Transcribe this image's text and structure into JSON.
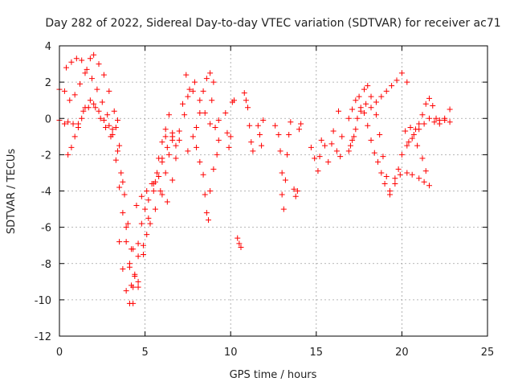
{
  "chart_data": {
    "type": "scatter",
    "title": "Day 282 of 2022, Sidereal Day-to-day VTEC variation (SDTVAR) for receiver ac71",
    "xlabel": "GPS time / hours",
    "ylabel": "SDTVAR / TECUs",
    "xlim": [
      0,
      25
    ],
    "ylim": [
      -12,
      4
    ],
    "xticks": [
      0,
      5,
      10,
      15,
      20,
      25
    ],
    "yticks": [
      -12,
      -10,
      -8,
      -6,
      -4,
      -2,
      0,
      2,
      4
    ],
    "xtick_labels": [
      "0",
      "5",
      "10",
      "15",
      "20",
      "25"
    ],
    "ytick_labels": [
      "-12",
      "-10",
      "-8",
      "-6",
      "-4",
      "-2",
      "0",
      "2",
      "4"
    ],
    "grid": true,
    "marker": "+",
    "series": [
      {
        "name": "SDTVAR",
        "color": "#ff0000",
        "points": [
          [
            0.0,
            1.6
          ],
          [
            0.3,
            1.5
          ],
          [
            0.6,
            1.0
          ],
          [
            0.9,
            1.3
          ],
          [
            1.2,
            1.9
          ],
          [
            1.5,
            2.5
          ],
          [
            1.8,
            3.3
          ],
          [
            2.0,
            3.5
          ],
          [
            2.3,
            3.0
          ],
          [
            2.6,
            2.4
          ],
          [
            2.9,
            1.5
          ],
          [
            3.2,
            0.4
          ],
          [
            3.5,
            -1.5
          ],
          [
            3.7,
            -3.5
          ],
          [
            3.9,
            -6.0
          ],
          [
            4.1,
            -8.2
          ],
          [
            4.3,
            -9.3
          ],
          [
            4.6,
            -9.0
          ],
          [
            4.9,
            -7.5
          ],
          [
            5.2,
            -5.5
          ],
          [
            5.5,
            -3.6
          ],
          [
            0.0,
            -0.1
          ],
          [
            0.3,
            -0.3
          ],
          [
            0.5,
            -0.2
          ],
          [
            0.8,
            -0.3
          ],
          [
            1.1,
            -0.5
          ],
          [
            1.3,
            0.0
          ],
          [
            1.5,
            0.6
          ],
          [
            1.8,
            1.0
          ],
          [
            2.1,
            0.6
          ],
          [
            2.4,
            0.0
          ],
          [
            2.7,
            -0.5
          ],
          [
            3.0,
            -1.0
          ],
          [
            3.3,
            -2.3
          ],
          [
            3.5,
            -3.8
          ],
          [
            3.7,
            -5.2
          ],
          [
            3.9,
            -6.8
          ],
          [
            4.1,
            -8.0
          ],
          [
            4.2,
            -9.2
          ],
          [
            4.3,
            -10.2
          ],
          [
            0.4,
            2.8
          ],
          [
            0.7,
            3.1
          ],
          [
            1.0,
            3.3
          ],
          [
            1.3,
            3.2
          ],
          [
            1.6,
            2.7
          ],
          [
            1.9,
            2.2
          ],
          [
            2.2,
            1.6
          ],
          [
            2.5,
            0.9
          ],
          [
            2.8,
            0.2
          ],
          [
            3.1,
            -0.6
          ],
          [
            3.4,
            -1.8
          ],
          [
            3.6,
            -3.0
          ],
          [
            3.8,
            -4.2
          ],
          [
            4.0,
            -5.8
          ],
          [
            4.2,
            -7.2
          ],
          [
            4.4,
            -8.6
          ],
          [
            4.6,
            -9.3
          ],
          [
            0.5,
            -2.0
          ],
          [
            0.7,
            -1.6
          ],
          [
            0.9,
            -1.0
          ],
          [
            1.1,
            -0.3
          ],
          [
            1.4,
            0.4
          ],
          [
            1.7,
            0.6
          ],
          [
            2.0,
            0.8
          ],
          [
            2.3,
            0.4
          ],
          [
            2.6,
            -0.1
          ],
          [
            2.9,
            -0.4
          ],
          [
            3.1,
            -0.9
          ],
          [
            3.3,
            -0.5
          ],
          [
            3.4,
            -0.1
          ],
          [
            3.5,
            -6.8
          ],
          [
            3.7,
            -8.3
          ],
          [
            3.9,
            -9.5
          ],
          [
            4.1,
            -10.2
          ],
          [
            4.4,
            -8.7
          ],
          [
            4.6,
            -6.9
          ],
          [
            4.8,
            -5.8
          ],
          [
            5.0,
            -5.0
          ],
          [
            5.2,
            -4.5
          ],
          [
            5.5,
            -4.0
          ],
          [
            5.8,
            -3.2
          ],
          [
            6.0,
            -2.2
          ],
          [
            6.2,
            -1.0
          ],
          [
            4.3,
            -7.2
          ],
          [
            4.6,
            -7.6
          ],
          [
            4.9,
            -7.0
          ],
          [
            5.1,
            -6.4
          ],
          [
            5.3,
            -5.8
          ],
          [
            5.6,
            -5.0
          ],
          [
            5.9,
            -4.0
          ],
          [
            6.2,
            -3.0
          ],
          [
            6.4,
            -2.0
          ],
          [
            6.6,
            -1.2
          ],
          [
            4.5,
            -4.8
          ],
          [
            4.8,
            -4.3
          ],
          [
            5.1,
            -4.0
          ],
          [
            5.4,
            -3.6
          ],
          [
            5.7,
            -3.0
          ],
          [
            6.0,
            -2.4
          ],
          [
            6.3,
            -1.6
          ],
          [
            6.6,
            -1.0
          ],
          [
            5.6,
            -3.5
          ],
          [
            5.8,
            -2.2
          ],
          [
            6.0,
            -1.3
          ],
          [
            6.2,
            -0.6
          ],
          [
            6.4,
            0.2
          ],
          [
            6.6,
            -0.8
          ],
          [
            6.8,
            -1.5
          ],
          [
            7.0,
            -0.7
          ],
          [
            7.2,
            0.8
          ],
          [
            7.4,
            2.4
          ],
          [
            6.0,
            -4.2
          ],
          [
            6.3,
            -4.6
          ],
          [
            6.6,
            -3.4
          ],
          [
            6.8,
            -2.2
          ],
          [
            7.0,
            -1.2
          ],
          [
            7.3,
            0.2
          ],
          [
            7.5,
            1.2
          ],
          [
            7.8,
            1.5
          ],
          [
            7.5,
            -1.8
          ],
          [
            7.8,
            -1.0
          ],
          [
            8.0,
            -0.5
          ],
          [
            8.2,
            0.3
          ],
          [
            8.4,
            1.5
          ],
          [
            8.6,
            2.2
          ],
          [
            8.8,
            2.5
          ],
          [
            9.0,
            2.0
          ],
          [
            8.9,
            1.0
          ],
          [
            8.0,
            -1.6
          ],
          [
            8.2,
            -2.4
          ],
          [
            8.4,
            -3.1
          ],
          [
            8.5,
            -4.2
          ],
          [
            8.6,
            -5.2
          ],
          [
            8.7,
            -5.6
          ],
          [
            8.8,
            -4.0
          ],
          [
            9.0,
            -2.8
          ],
          [
            9.2,
            -2.0
          ],
          [
            9.3,
            -1.2
          ],
          [
            7.6,
            1.6
          ],
          [
            7.9,
            2.0
          ],
          [
            8.2,
            1.0
          ],
          [
            8.5,
            0.3
          ],
          [
            8.8,
            -0.3
          ],
          [
            9.1,
            -0.5
          ],
          [
            9.3,
            -0.1
          ],
          [
            9.7,
            0.3
          ],
          [
            9.8,
            -0.8
          ],
          [
            9.9,
            -1.6
          ],
          [
            10.0,
            -1.0
          ],
          [
            10.1,
            0.9
          ],
          [
            10.2,
            1.0
          ],
          [
            10.4,
            -6.6
          ],
          [
            10.5,
            -6.9
          ],
          [
            10.6,
            -7.1
          ],
          [
            10.8,
            1.4
          ],
          [
            10.9,
            1.0
          ],
          [
            11.0,
            0.6
          ],
          [
            11.1,
            -0.4
          ],
          [
            11.2,
            -1.3
          ],
          [
            11.3,
            -1.8
          ],
          [
            11.6,
            -0.4
          ],
          [
            11.7,
            -0.9
          ],
          [
            11.8,
            -1.5
          ],
          [
            11.9,
            -0.1
          ],
          [
            12.6,
            -0.4
          ],
          [
            12.8,
            -0.9
          ],
          [
            12.9,
            -1.8
          ],
          [
            13.0,
            -3.0
          ],
          [
            13.0,
            -4.2
          ],
          [
            13.1,
            -5.0
          ],
          [
            13.2,
            -3.4
          ],
          [
            13.3,
            -2.0
          ],
          [
            13.4,
            -0.9
          ],
          [
            13.5,
            -0.2
          ],
          [
            13.7,
            -3.9
          ],
          [
            13.8,
            -4.3
          ],
          [
            13.9,
            -4.0
          ],
          [
            14.0,
            -0.6
          ],
          [
            14.1,
            -0.3
          ],
          [
            14.7,
            -1.6
          ],
          [
            14.9,
            -2.2
          ],
          [
            15.1,
            -2.9
          ],
          [
            15.2,
            -2.1
          ],
          [
            15.3,
            -1.2
          ],
          [
            15.5,
            -1.5
          ],
          [
            15.7,
            -2.4
          ],
          [
            15.9,
            -1.4
          ],
          [
            16.0,
            -0.7
          ],
          [
            16.2,
            -1.8
          ],
          [
            16.4,
            -2.1
          ],
          [
            16.5,
            -1.0
          ],
          [
            16.3,
            0.4
          ],
          [
            16.9,
            0.0
          ],
          [
            17.1,
            0.5
          ],
          [
            17.3,
            1.0
          ],
          [
            17.5,
            1.2
          ],
          [
            17.8,
            1.6
          ],
          [
            18.0,
            1.8
          ],
          [
            18.2,
            1.2
          ],
          [
            18.5,
            0.9
          ],
          [
            18.8,
            1.2
          ],
          [
            19.1,
            1.5
          ],
          [
            19.4,
            1.8
          ],
          [
            19.7,
            2.1
          ],
          [
            20.0,
            2.5
          ],
          [
            20.3,
            2.0
          ],
          [
            17.0,
            -1.5
          ],
          [
            17.2,
            -1.0
          ],
          [
            17.4,
            0.0
          ],
          [
            17.6,
            0.6
          ],
          [
            17.8,
            0.3
          ],
          [
            18.0,
            -0.4
          ],
          [
            18.2,
            -1.2
          ],
          [
            18.4,
            -1.9
          ],
          [
            18.6,
            -2.4
          ],
          [
            18.8,
            -3.0
          ],
          [
            19.0,
            -3.6
          ],
          [
            19.3,
            -4.0
          ],
          [
            19.6,
            -3.3
          ],
          [
            19.8,
            -2.8
          ],
          [
            20.0,
            -2.0
          ],
          [
            20.3,
            -1.5
          ],
          [
            20.6,
            -1.1
          ],
          [
            20.9,
            -1.5
          ],
          [
            21.2,
            -2.2
          ],
          [
            21.4,
            -2.9
          ],
          [
            16.9,
            -1.8
          ],
          [
            17.1,
            -1.2
          ],
          [
            17.3,
            -0.6
          ],
          [
            17.6,
            0.4
          ],
          [
            17.9,
            0.8
          ],
          [
            18.2,
            0.6
          ],
          [
            18.5,
            0.2
          ],
          [
            18.7,
            -0.9
          ],
          [
            18.9,
            -2.1
          ],
          [
            19.1,
            -3.2
          ],
          [
            19.3,
            -4.2
          ],
          [
            19.6,
            -3.6
          ],
          [
            19.9,
            -3.1
          ],
          [
            20.3,
            -3.0
          ],
          [
            20.6,
            -3.1
          ],
          [
            21.0,
            -3.3
          ],
          [
            21.3,
            -3.5
          ],
          [
            21.6,
            -3.7
          ],
          [
            20.2,
            -0.7
          ],
          [
            20.5,
            -0.5
          ],
          [
            20.8,
            -0.6
          ],
          [
            21.0,
            -0.3
          ],
          [
            21.2,
            0.2
          ],
          [
            21.4,
            0.8
          ],
          [
            21.6,
            1.1
          ],
          [
            21.8,
            0.7
          ],
          [
            22.0,
            0.0
          ],
          [
            22.2,
            -0.3
          ],
          [
            22.5,
            0.0
          ],
          [
            22.8,
            0.5
          ],
          [
            20.4,
            -1.3
          ],
          [
            20.7,
            -0.9
          ],
          [
            21.0,
            -0.6
          ],
          [
            21.3,
            -0.3
          ],
          [
            21.6,
            0.0
          ],
          [
            21.9,
            -0.2
          ],
          [
            22.2,
            -0.1
          ],
          [
            22.5,
            -0.1
          ],
          [
            22.8,
            -0.2
          ]
        ]
      }
    ]
  }
}
